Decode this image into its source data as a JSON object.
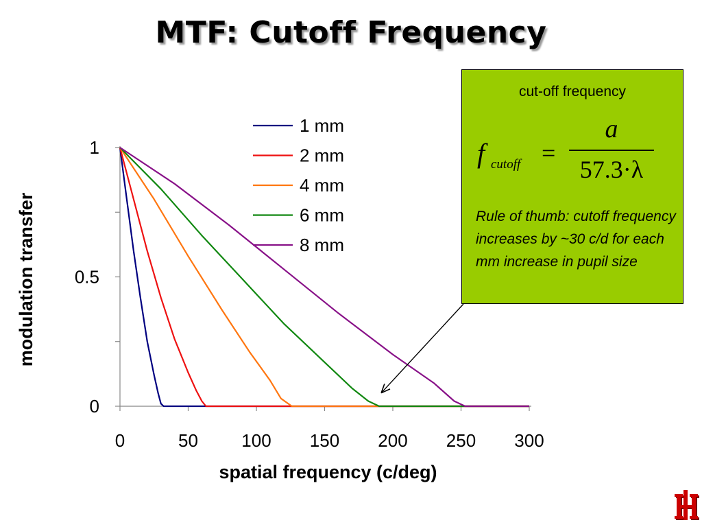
{
  "slide": {
    "title": "MTF: Cutoff Frequency"
  },
  "chart_data": {
    "type": "line",
    "title": "",
    "xlabel": "spatial frequency (c/deg)",
    "ylabel": "modulation transfer",
    "xlim": [
      0,
      300
    ],
    "ylim": [
      0,
      1
    ],
    "x_ticks": [
      "0",
      "50",
      "100",
      "150",
      "200",
      "250",
      "300"
    ],
    "y_tick_labels": [
      {
        "value": 0,
        "label": "0"
      },
      {
        "value": 0.5,
        "label": "0.5"
      },
      {
        "value": 1,
        "label": "1"
      }
    ],
    "y_minor_ticks": [
      0.25,
      0.75
    ],
    "grid": false,
    "legend_position": "top-center",
    "series": [
      {
        "name": "1 mm",
        "color": "#000080",
        "cutoff": 32,
        "points": [
          [
            0,
            1
          ],
          [
            5,
            0.8
          ],
          [
            10,
            0.6
          ],
          [
            15,
            0.42
          ],
          [
            20,
            0.25
          ],
          [
            25,
            0.12
          ],
          [
            28,
            0.05
          ],
          [
            30,
            0.01
          ],
          [
            32,
            0
          ],
          [
            300,
            0
          ]
        ]
      },
      {
        "name": "2 mm",
        "color": "#ee1111",
        "cutoff": 63,
        "points": [
          [
            0,
            1
          ],
          [
            10,
            0.8
          ],
          [
            20,
            0.6
          ],
          [
            30,
            0.42
          ],
          [
            40,
            0.26
          ],
          [
            50,
            0.13
          ],
          [
            56,
            0.06
          ],
          [
            60,
            0.02
          ],
          [
            63,
            0
          ],
          [
            300,
            0
          ]
        ]
      },
      {
        "name": "4 mm",
        "color": "#ff7711",
        "cutoff": 126,
        "points": [
          [
            0,
            1
          ],
          [
            25,
            0.8
          ],
          [
            50,
            0.58
          ],
          [
            75,
            0.37
          ],
          [
            95,
            0.21
          ],
          [
            110,
            0.1
          ],
          [
            118,
            0.03
          ],
          [
            126,
            0
          ],
          [
            300,
            0
          ]
        ]
      },
      {
        "name": "6 mm",
        "color": "#118811",
        "cutoff": 190,
        "points": [
          [
            0,
            1
          ],
          [
            30,
            0.84
          ],
          [
            60,
            0.66
          ],
          [
            90,
            0.49
          ],
          [
            120,
            0.32
          ],
          [
            150,
            0.17
          ],
          [
            170,
            0.07
          ],
          [
            182,
            0.02
          ],
          [
            190,
            0
          ],
          [
            300,
            0
          ]
        ]
      },
      {
        "name": "8 mm",
        "color": "#881188",
        "cutoff": 253,
        "points": [
          [
            0,
            1
          ],
          [
            40,
            0.86
          ],
          [
            80,
            0.7
          ],
          [
            120,
            0.53
          ],
          [
            160,
            0.36
          ],
          [
            200,
            0.2
          ],
          [
            230,
            0.09
          ],
          [
            245,
            0.02
          ],
          [
            253,
            0
          ],
          [
            300,
            0
          ]
        ]
      }
    ],
    "annotation_arrow_target": {
      "x": 190,
      "y": 0.03
    }
  },
  "callout": {
    "heading": "cut-off frequency",
    "formula": {
      "lhs": "f",
      "subscript": "cutoff",
      "equals": "=",
      "numerator": "a",
      "denominator": "57.3·λ"
    },
    "note": "Rule of thumb: cutoff frequency increases by ~30 c/d for each mm increase in pupil size",
    "background": "#99cc00"
  },
  "logo": {
    "name": "university-logo",
    "color": "#cc0000"
  }
}
